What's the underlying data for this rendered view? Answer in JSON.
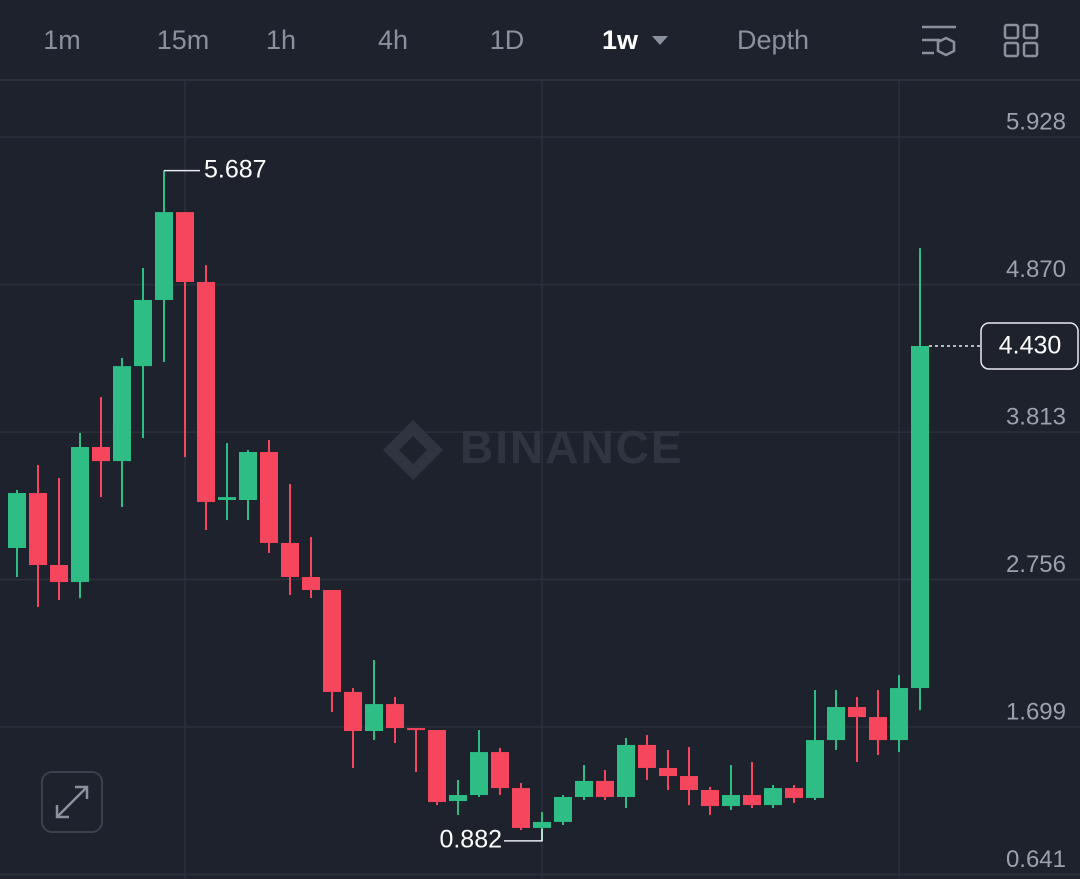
{
  "toolbar": {
    "tabs": [
      "1m",
      "15m",
      "1h",
      "4h",
      "1D",
      "1w",
      "Depth"
    ],
    "active": 5
  },
  "chart_data": {
    "type": "candlestick",
    "watermark": "BINANCE",
    "up_color": "#2ebd85",
    "down_color": "#f6465d",
    "open": [
      2.982,
      3.376,
      2.86,
      2.738,
      3.706,
      3.605,
      4.286,
      4.76,
      5.39,
      4.889,
      3.326,
      3.326,
      3.67,
      3.018,
      2.774,
      2.681,
      1.95,
      1.67,
      1.863,
      1.691,
      1.677,
      1.168,
      1.211,
      1.519,
      1.261,
      0.975,
      1.018,
      1.197,
      1.312,
      1.197,
      1.57,
      1.405,
      1.347,
      1.247,
      1.132,
      1.211,
      1.139,
      1.261,
      1.19,
      1.605,
      1.842,
      1.77,
      1.605,
      1.978
    ],
    "high": [
      3.398,
      3.577,
      3.484,
      3.806,
      4.064,
      4.344,
      4.989,
      5.687,
      5.39,
      5.01,
      3.734,
      3.684,
      3.756,
      3.441,
      3.061,
      2.681,
      1.978,
      2.179,
      1.914,
      1.691,
      1.677,
      1.319,
      1.677,
      1.548,
      1.297,
      1.089,
      1.211,
      1.426,
      1.39,
      1.62,
      1.641,
      1.534,
      1.555,
      1.269,
      1.426,
      1.448,
      1.283,
      1.283,
      1.964,
      1.964,
      1.914,
      1.964,
      2.071,
      5.132
    ],
    "low": [
      2.774,
      2.559,
      2.609,
      2.623,
      3.347,
      3.276,
      3.77,
      4.315,
      3.634,
      3.111,
      3.182,
      3.182,
      2.946,
      2.645,
      2.623,
      1.806,
      1.405,
      1.605,
      1.584,
      1.376,
      1.139,
      1.068,
      1.197,
      1.211,
      0.96,
      0.882,
      0.996,
      1.175,
      1.175,
      1.118,
      1.319,
      1.247,
      1.139,
      1.068,
      1.104,
      1.118,
      1.118,
      1.154,
      1.175,
      1.534,
      1.448,
      1.498,
      1.519,
      1.82
    ],
    "close": [
      3.376,
      2.86,
      2.738,
      3.706,
      3.605,
      4.286,
      4.76,
      5.39,
      4.889,
      3.312,
      3.347,
      3.67,
      3.018,
      2.774,
      2.681,
      1.95,
      1.67,
      1.863,
      1.691,
      1.677,
      1.161,
      1.211,
      1.519,
      1.261,
      0.975,
      1.018,
      1.197,
      1.312,
      1.197,
      1.57,
      1.405,
      1.347,
      1.247,
      1.132,
      1.211,
      1.139,
      1.261,
      1.19,
      1.605,
      1.842,
      1.77,
      1.605,
      1.978,
      4.43
    ],
    "last_price": {
      "value": 4.43,
      "label": "4.430"
    },
    "ylim": [
      0.609,
      6.337
    ],
    "yticks": [
      5.928,
      {
        "value": 4.87,
        "label": "4.870"
      },
      3.813,
      2.756,
      1.699,
      0.641
    ],
    "grid": true
  }
}
